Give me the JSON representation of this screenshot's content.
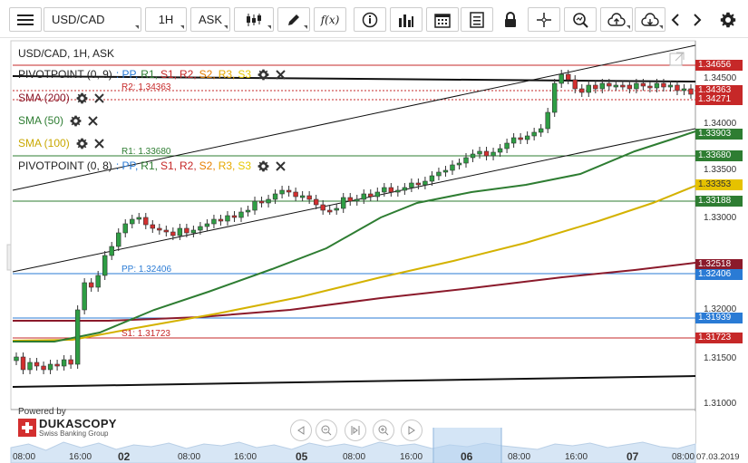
{
  "toolbar": {
    "symbol": "USD/CAD",
    "period": "1H",
    "side": "ASK",
    "fx_label": "f(x)"
  },
  "chart": {
    "title": "USD/CAD, 1H, ASK",
    "indicators": [
      {
        "name": "PIVOTPOINT (0, 9)",
        "color": "#222222",
        "levels": [
          {
            "text": ": PP,",
            "color": "#2a7bd5"
          },
          {
            "text": "R1,",
            "color": "#2e7d32"
          },
          {
            "text": "S1,",
            "color": "#c62828"
          },
          {
            "text": "R2,",
            "color": "#c62828"
          },
          {
            "text": "S2,",
            "color": "#e67e00"
          },
          {
            "text": "R3,",
            "color": "#e6a800"
          },
          {
            "text": "S3",
            "color": "#e6c800"
          }
        ]
      },
      {
        "name": "SMA (200)",
        "color": "#8b1a2b"
      },
      {
        "name": "SMA (50)",
        "color": "#2e7d32"
      },
      {
        "name": "SMA (100)",
        "color": "#d4b200"
      },
      {
        "name": "PIVOTPOINT (0, 8)",
        "color": "#222222",
        "levels": [
          {
            "text": ": PP,",
            "color": "#2a7bd5"
          },
          {
            "text": "R1,",
            "color": "#2e7d32"
          },
          {
            "text": "S1,",
            "color": "#c62828"
          },
          {
            "text": "R2,",
            "color": "#c62828"
          },
          {
            "text": "S2,",
            "color": "#e67e00"
          },
          {
            "text": "R3,",
            "color": "#e6a800"
          },
          {
            "text": "S3",
            "color": "#e6c800"
          }
        ]
      }
    ],
    "line_labels": {
      "r2": "R2: 1.34363",
      "r1": "R1: 1.33680",
      "pp": "PP: 1.32406",
      "s1": "S1: 1.31723"
    },
    "price_ticks": [
      "1.34500",
      "1.34000",
      "1.33500",
      "1.33000",
      "1.32000",
      "1.31500",
      "1.31000"
    ],
    "price_tags": [
      {
        "text": "1.34656",
        "color": "#c62828"
      },
      {
        "text": "1.34363",
        "color": "#c62828"
      },
      {
        "text": "1.34271",
        "color": "#c62828"
      },
      {
        "text": "1.33903",
        "color": "#2e7d32"
      },
      {
        "text": "1.33680",
        "color": "#2e7d32"
      },
      {
        "text": "1.33353",
        "color": "#e6c200"
      },
      {
        "text": "1.33188",
        "color": "#2e7d32"
      },
      {
        "text": "1.32518",
        "color": "#8b1a2b"
      },
      {
        "text": "1.32406",
        "color": "#2a7bd5"
      },
      {
        "text": "1.31939",
        "color": "#2a7bd5"
      },
      {
        "text": "1.31723",
        "color": "#c62828"
      }
    ],
    "time_ticks": [
      "08:00",
      "16:00",
      "02",
      "08:00",
      "16:00",
      "05",
      "08:00",
      "16:00",
      "06",
      "08:00",
      "16:00",
      "07",
      "08:00",
      "07.03.2019"
    ],
    "logo": {
      "powered": "Powered by",
      "brand": "DUKASCOPY",
      "sub": "Swiss Banking Group"
    }
  }
}
